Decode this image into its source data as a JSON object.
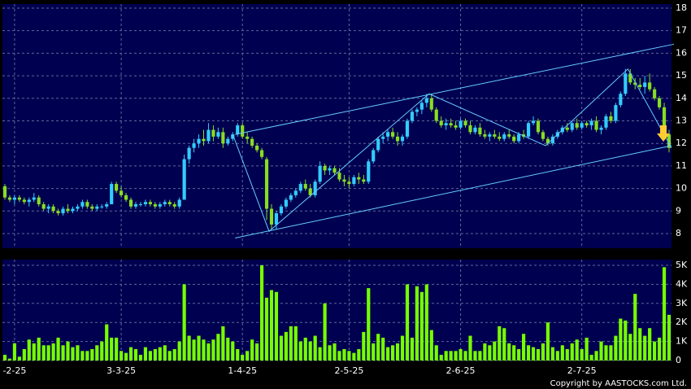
{
  "chart_data": {
    "type": "candlestick",
    "ohlc": [
      [
        10.1,
        10.2,
        9.5,
        9.6
      ],
      [
        9.6,
        9.7,
        9.4,
        9.5
      ],
      [
        9.5,
        9.7,
        9.3,
        9.6
      ],
      [
        9.6,
        9.7,
        9.4,
        9.5
      ],
      [
        9.5,
        9.6,
        9.3,
        9.4
      ],
      [
        9.4,
        9.6,
        9.2,
        9.5
      ],
      [
        9.5,
        9.8,
        9.4,
        9.6
      ],
      [
        9.6,
        9.7,
        9.2,
        9.3
      ],
      [
        9.3,
        9.4,
        9.0,
        9.1
      ],
      [
        9.1,
        9.3,
        8.9,
        9.2
      ],
      [
        9.2,
        9.3,
        8.9,
        9.0
      ],
      [
        9.0,
        9.1,
        8.8,
        8.9
      ],
      [
        8.9,
        9.2,
        8.8,
        9.1
      ],
      [
        9.1,
        9.3,
        8.9,
        9.0
      ],
      [
        9.0,
        9.2,
        8.9,
        9.1
      ],
      [
        9.1,
        9.3,
        9.0,
        9.2
      ],
      [
        9.2,
        9.5,
        9.1,
        9.4
      ],
      [
        9.4,
        9.5,
        9.1,
        9.2
      ],
      [
        9.2,
        9.3,
        9.0,
        9.1
      ],
      [
        9.1,
        9.3,
        9.0,
        9.2
      ],
      [
        9.2,
        9.3,
        9.1,
        9.2
      ],
      [
        9.2,
        9.4,
        9.1,
        9.3
      ],
      [
        9.3,
        10.3,
        9.3,
        10.2
      ],
      [
        10.2,
        10.3,
        9.8,
        9.9
      ],
      [
        9.9,
        10.1,
        9.6,
        9.7
      ],
      [
        9.7,
        9.8,
        9.4,
        9.5
      ],
      [
        9.5,
        9.6,
        9.1,
        9.2
      ],
      [
        9.2,
        9.4,
        9.1,
        9.3
      ],
      [
        9.3,
        9.4,
        9.2,
        9.3
      ],
      [
        9.3,
        9.5,
        9.2,
        9.4
      ],
      [
        9.4,
        9.5,
        9.2,
        9.3
      ],
      [
        9.3,
        9.4,
        9.1,
        9.2
      ],
      [
        9.2,
        9.4,
        9.1,
        9.3
      ],
      [
        9.3,
        9.5,
        9.2,
        9.4
      ],
      [
        9.4,
        9.5,
        9.2,
        9.3
      ],
      [
        9.3,
        9.4,
        9.1,
        9.2
      ],
      [
        9.2,
        9.6,
        9.1,
        9.5
      ],
      [
        9.5,
        11.5,
        9.5,
        11.3
      ],
      [
        11.3,
        11.9,
        11.1,
        11.8
      ],
      [
        11.8,
        12.2,
        11.6,
        12.0
      ],
      [
        12.0,
        12.4,
        11.8,
        12.2
      ],
      [
        12.2,
        12.6,
        11.9,
        12.1
      ],
      [
        12.1,
        12.9,
        12.0,
        12.6
      ],
      [
        12.6,
        12.8,
        12.1,
        12.3
      ],
      [
        12.3,
        12.7,
        12.2,
        12.5
      ],
      [
        12.5,
        12.7,
        11.8,
        12.0
      ],
      [
        12.0,
        12.3,
        11.9,
        12.2
      ],
      [
        12.2,
        12.5,
        12.1,
        12.4
      ],
      [
        12.4,
        12.9,
        12.3,
        12.8
      ],
      [
        12.8,
        12.9,
        12.2,
        12.3
      ],
      [
        12.3,
        12.5,
        12.0,
        12.2
      ],
      [
        12.2,
        12.3,
        11.8,
        11.9
      ],
      [
        11.9,
        12.0,
        11.6,
        11.7
      ],
      [
        11.7,
        11.8,
        11.3,
        11.4
      ],
      [
        11.3,
        11.4,
        8.6,
        9.1
      ],
      [
        9.1,
        9.3,
        8.2,
        8.4
      ],
      [
        8.4,
        9.0,
        8.2,
        8.9
      ],
      [
        8.9,
        9.3,
        8.8,
        9.2
      ],
      [
        9.2,
        9.6,
        9.1,
        9.5
      ],
      [
        9.5,
        9.8,
        9.4,
        9.7
      ],
      [
        9.7,
        10.0,
        9.6,
        9.9
      ],
      [
        9.9,
        10.3,
        9.8,
        10.2
      ],
      [
        10.2,
        10.4,
        9.9,
        10.0
      ],
      [
        10.0,
        10.2,
        9.6,
        9.7
      ],
      [
        9.7,
        10.4,
        9.6,
        10.3
      ],
      [
        10.3,
        11.2,
        10.2,
        11.0
      ],
      [
        11.0,
        11.1,
        10.6,
        10.8
      ],
      [
        10.8,
        11.0,
        10.6,
        10.9
      ],
      [
        10.9,
        11.0,
        10.6,
        10.7
      ],
      [
        10.7,
        10.9,
        10.3,
        10.4
      ],
      [
        10.4,
        10.6,
        10.1,
        10.3
      ],
      [
        10.3,
        10.5,
        10.0,
        10.2
      ],
      [
        10.2,
        10.6,
        10.1,
        10.5
      ],
      [
        10.5,
        10.7,
        10.2,
        10.4
      ],
      [
        10.4,
        10.6,
        10.2,
        10.3
      ],
      [
        10.3,
        11.3,
        10.2,
        11.2
      ],
      [
        11.2,
        11.8,
        11.1,
        11.7
      ],
      [
        11.7,
        12.3,
        11.6,
        12.2
      ],
      [
        12.2,
        12.5,
        12.0,
        12.3
      ],
      [
        12.3,
        12.6,
        12.1,
        12.5
      ],
      [
        12.5,
        12.7,
        12.2,
        12.3
      ],
      [
        12.3,
        12.5,
        11.9,
        12.1
      ],
      [
        12.1,
        12.4,
        11.9,
        12.3
      ],
      [
        12.3,
        13.1,
        12.2,
        13.0
      ],
      [
        13.0,
        13.5,
        12.9,
        13.4
      ],
      [
        13.4,
        13.6,
        13.2,
        13.5
      ],
      [
        13.5,
        13.9,
        13.3,
        13.8
      ],
      [
        13.8,
        14.2,
        13.6,
        14.0
      ],
      [
        14.0,
        14.2,
        13.4,
        13.5
      ],
      [
        13.5,
        13.6,
        12.9,
        13.0
      ],
      [
        13.0,
        13.2,
        12.7,
        12.8
      ],
      [
        12.8,
        13.1,
        12.6,
        12.9
      ],
      [
        12.9,
        13.1,
        12.7,
        12.8
      ],
      [
        12.8,
        13.0,
        12.6,
        12.7
      ],
      [
        12.7,
        13.1,
        12.6,
        13.0
      ],
      [
        13.0,
        13.1,
        12.7,
        12.8
      ],
      [
        12.8,
        13.0,
        12.4,
        12.5
      ],
      [
        12.5,
        12.8,
        12.4,
        12.7
      ],
      [
        12.7,
        12.9,
        12.3,
        12.4
      ],
      [
        12.4,
        12.6,
        12.2,
        12.3
      ],
      [
        12.3,
        12.5,
        12.1,
        12.4
      ],
      [
        12.4,
        12.6,
        12.2,
        12.3
      ],
      [
        12.3,
        12.5,
        12.1,
        12.2
      ],
      [
        12.2,
        12.5,
        12.1,
        12.4
      ],
      [
        12.4,
        12.6,
        12.2,
        12.3
      ],
      [
        12.3,
        12.4,
        12.0,
        12.1
      ],
      [
        12.1,
        12.5,
        12.0,
        12.4
      ],
      [
        12.4,
        12.6,
        12.2,
        12.3
      ],
      [
        12.3,
        13.0,
        12.2,
        12.9
      ],
      [
        12.9,
        13.2,
        12.8,
        13.0
      ],
      [
        13.0,
        13.1,
        12.4,
        12.5
      ],
      [
        12.5,
        12.6,
        12.1,
        12.2
      ],
      [
        12.2,
        12.3,
        11.9,
        12.0
      ],
      [
        12.0,
        12.4,
        11.9,
        12.3
      ],
      [
        12.3,
        12.6,
        12.2,
        12.5
      ],
      [
        12.5,
        12.8,
        12.4,
        12.7
      ],
      [
        12.7,
        12.9,
        12.5,
        12.6
      ],
      [
        12.6,
        13.0,
        12.5,
        12.9
      ],
      [
        12.9,
        13.1,
        12.6,
        12.7
      ],
      [
        12.7,
        13.0,
        12.6,
        12.9
      ],
      [
        12.9,
        13.0,
        12.7,
        12.8
      ],
      [
        12.8,
        13.1,
        12.6,
        13.0
      ],
      [
        13.0,
        13.2,
        12.5,
        12.6
      ],
      [
        12.6,
        12.8,
        12.4,
        12.7
      ],
      [
        12.7,
        13.3,
        12.6,
        13.2
      ],
      [
        13.2,
        13.4,
        12.9,
        13.0
      ],
      [
        13.0,
        13.8,
        12.9,
        13.7
      ],
      [
        13.7,
        14.3,
        13.6,
        14.2
      ],
      [
        14.2,
        15.3,
        14.1,
        15.1
      ],
      [
        15.1,
        15.3,
        14.6,
        14.7
      ],
      [
        14.7,
        14.9,
        14.4,
        14.6
      ],
      [
        14.6,
        14.9,
        14.4,
        14.5
      ],
      [
        14.5,
        15.0,
        14.2,
        14.7
      ],
      [
        14.7,
        15.1,
        14.3,
        14.4
      ],
      [
        14.4,
        14.5,
        13.9,
        14.0
      ],
      [
        14.0,
        14.1,
        13.5,
        13.6
      ],
      [
        13.6,
        13.8,
        12.2,
        12.4
      ],
      [
        12.4,
        12.6,
        11.6,
        11.8
      ]
    ],
    "volume": [
      300,
      100,
      900,
      200,
      600,
      1100,
      900,
      1200,
      800,
      800,
      900,
      1200,
      800,
      1000,
      700,
      800,
      500,
      500,
      600,
      800,
      1000,
      1900,
      1200,
      1200,
      500,
      400,
      700,
      600,
      300,
      700,
      500,
      600,
      700,
      800,
      500,
      600,
      1000,
      4000,
      1300,
      1100,
      1300,
      1100,
      900,
      1100,
      1400,
      1800,
      1200,
      1000,
      600,
      300,
      500,
      1100,
      900,
      5000,
      3300,
      3700,
      3600,
      1300,
      1500,
      1800,
      1800,
      1000,
      1200,
      1000,
      1300,
      700,
      3000,
      800,
      900,
      500,
      600,
      500,
      400,
      600,
      1500,
      3800,
      900,
      1400,
      1200,
      700,
      800,
      900,
      1300,
      4000,
      1200,
      3900,
      3600,
      4000,
      1600,
      800,
      300,
      500,
      500,
      500,
      600,
      500,
      1300,
      500,
      500,
      900,
      800,
      1000,
      1800,
      1700,
      900,
      800,
      600,
      1400,
      800,
      700,
      600,
      900,
      2000,
      700,
      500,
      800,
      600,
      900,
      1100,
      600,
      1200,
      300,
      500,
      1000,
      800,
      800,
      1300,
      2200,
      2100,
      1400,
      3500,
      1700,
      1300,
      1700,
      1000,
      1200,
      4900,
      2400
    ],
    "up_color": "#33ccff",
    "down_color": "#88dd22",
    "volume_color": "#77ff00",
    "trendline_color": "#66ccff",
    "xlim": [
      0,
      138
    ],
    "xticks": [
      {
        "value": 2,
        "label": "-2-25"
      },
      {
        "value": 24,
        "label": "3-3-25"
      },
      {
        "value": 49,
        "label": "1-4-25"
      },
      {
        "value": 71,
        "label": "2-5-25"
      },
      {
        "value": 94,
        "label": "2-6-25"
      },
      {
        "value": 119,
        "label": "2-7-25"
      }
    ],
    "ylim": [
      7.35,
      18.18
    ],
    "yticks": [
      8,
      9,
      10,
      11,
      12,
      13,
      14,
      15,
      16,
      17,
      18
    ],
    "y2lim": [
      0,
      5300
    ],
    "y2ticks": [
      0,
      {
        "value": 1000,
        "label": "1K"
      },
      {
        "value": 2000,
        "label": "2K"
      },
      {
        "value": 3000,
        "label": "3K"
      },
      {
        "value": 4000,
        "label": "4K"
      },
      {
        "value": 5000,
        "label": "5K"
      }
    ],
    "trendlines": [
      [
        [
          47.5,
          12.4
        ],
        [
          138,
          16.4
        ]
      ],
      [
        [
          47.5,
          7.8
        ],
        [
          137.5,
          11.9
        ]
      ],
      [
        [
          47,
          12.4
        ],
        [
          54.5,
          8.1
        ],
        [
          87.5,
          14.2
        ],
        [
          111.5,
          11.9
        ],
        [
          128.5,
          15.3
        ],
        [
          137.5,
          11.8
        ]
      ]
    ],
    "grid": true,
    "copyright": "Copyright by AASTOCKS.com Ltd."
  }
}
